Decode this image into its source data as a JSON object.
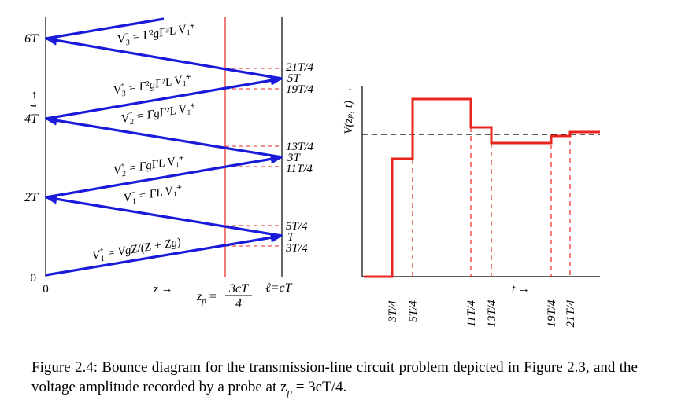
{
  "bounce": {
    "y_labels": {
      "six_t": "6T",
      "four_t": "4T",
      "two_t": "2T",
      "zero_top": "0",
      "zero_bottom": "0"
    },
    "t_axis_label": "t →",
    "z_axis_label": "z →",
    "probe_label": "z",
    "probe_sub": "p",
    "probe_eq": "=",
    "probe_num": "3cT",
    "probe_den": "4",
    "end_label": "ℓ=cT",
    "right_labels": [
      "21T/4",
      "5T",
      "19T/4",
      "13T/4",
      "3T",
      "11T/4",
      "5T/4",
      "T",
      "3T/4"
    ],
    "equations": [
      {
        "lhs": "V",
        "lhs_sup": "−",
        "lhs_sub": "3",
        "rhs": "= Γ²gΓ³L V₁⁺"
      },
      {
        "lhs": "V",
        "lhs_sup": "+",
        "lhs_sub": "3",
        "rhs": "= Γ²gΓ²L V₁⁺"
      },
      {
        "lhs": "V",
        "lhs_sup": "−",
        "lhs_sub": "2",
        "rhs": "= ΓgΓ²L V₁⁺"
      },
      {
        "lhs": "V",
        "lhs_sup": "+",
        "lhs_sub": "2",
        "rhs": "= ΓgΓL V₁⁺"
      },
      {
        "lhs": "V",
        "lhs_sup": "−",
        "lhs_sub": "1",
        "rhs": "= ΓL V₁⁺"
      },
      {
        "lhs": "V",
        "lhs_sup": "+",
        "lhs_sub": "1",
        "rhs": "= VgZ/(Z + Zg)"
      }
    ]
  },
  "probe_plot": {
    "y_axis_label": "V(zₚ, t) →",
    "t_axis_label": "t →",
    "x_ticks": [
      "3T/4",
      "5T/4",
      "11T/4",
      "13T/4",
      "19T/4",
      "21T/4"
    ]
  },
  "caption": {
    "text": "Figure 2.4: Bounce diagram for the transmission-line circuit problem depicted in Figure 2.3, and the voltage amplitude recorded by a probe at z",
    "sub": "p",
    "tail": " = 3cT/4."
  },
  "colors": {
    "bounce_line": "#1a1adb",
    "probe": "#e8261f",
    "axis": "#000000"
  }
}
